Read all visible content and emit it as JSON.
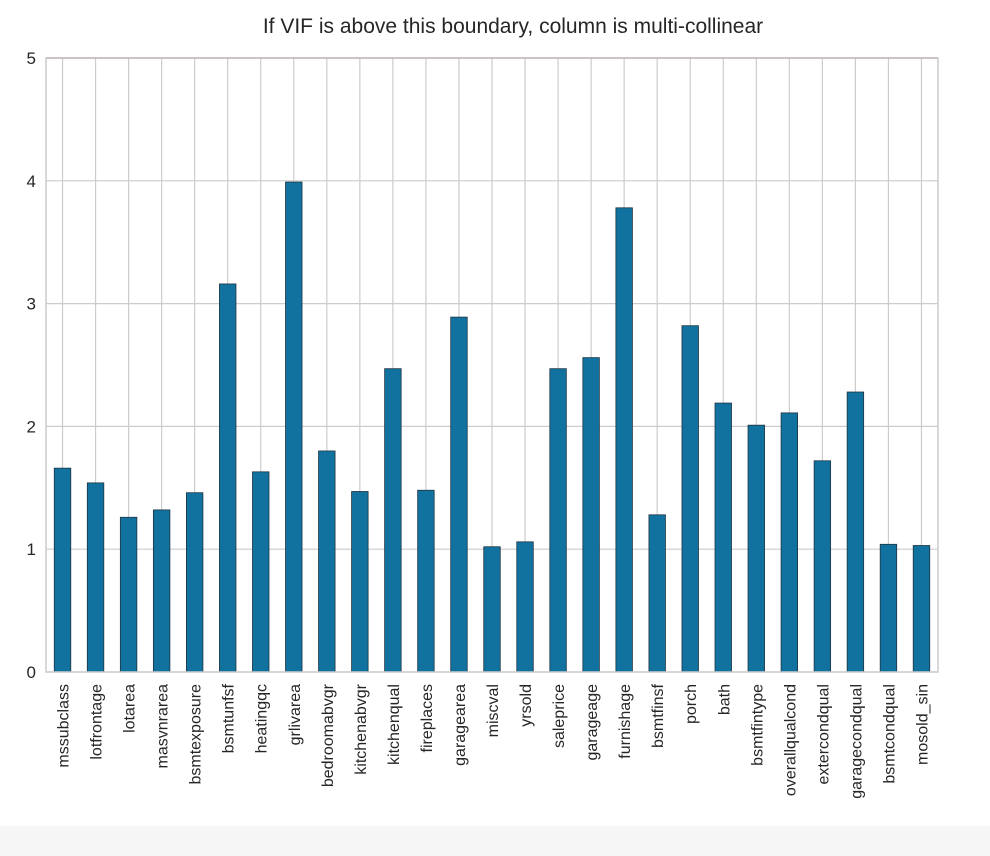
{
  "chart_data": {
    "type": "bar",
    "title": "If VIF is above this boundary, column is multi-collinear",
    "xlabel": "",
    "ylabel": "",
    "ylim": [
      0,
      5
    ],
    "yticks": [
      0,
      1,
      2,
      3,
      4,
      5
    ],
    "grid": true,
    "threshold": 5,
    "threshold_color": "#c44e52",
    "bar_color": "#1172a0",
    "categories": [
      "mssubclass",
      "lotfrontage",
      "lotarea",
      "masvnrarea",
      "bsmtexposure",
      "bsmtunfsf",
      "heatingqc",
      "grlivarea",
      "bedroomabvgr",
      "kitchenabvgr",
      "kitchenqual",
      "fireplaces",
      "garagearea",
      "miscval",
      "yrsold",
      "saleprice",
      "garageage",
      "furnishage",
      "bsmtfinsf",
      "porch",
      "bath",
      "bsmtfintype",
      "overallqualcond",
      "extercondqual",
      "garagecondqual",
      "bsmtcondqual",
      "mosold_sin"
    ],
    "values": [
      1.66,
      1.54,
      1.26,
      1.32,
      1.46,
      3.16,
      1.63,
      3.99,
      1.8,
      1.47,
      2.47,
      1.48,
      2.89,
      1.02,
      1.06,
      2.47,
      2.56,
      3.78,
      1.28,
      2.82,
      2.19,
      2.01,
      2.11,
      1.72,
      2.28,
      1.04,
      1.03
    ]
  }
}
